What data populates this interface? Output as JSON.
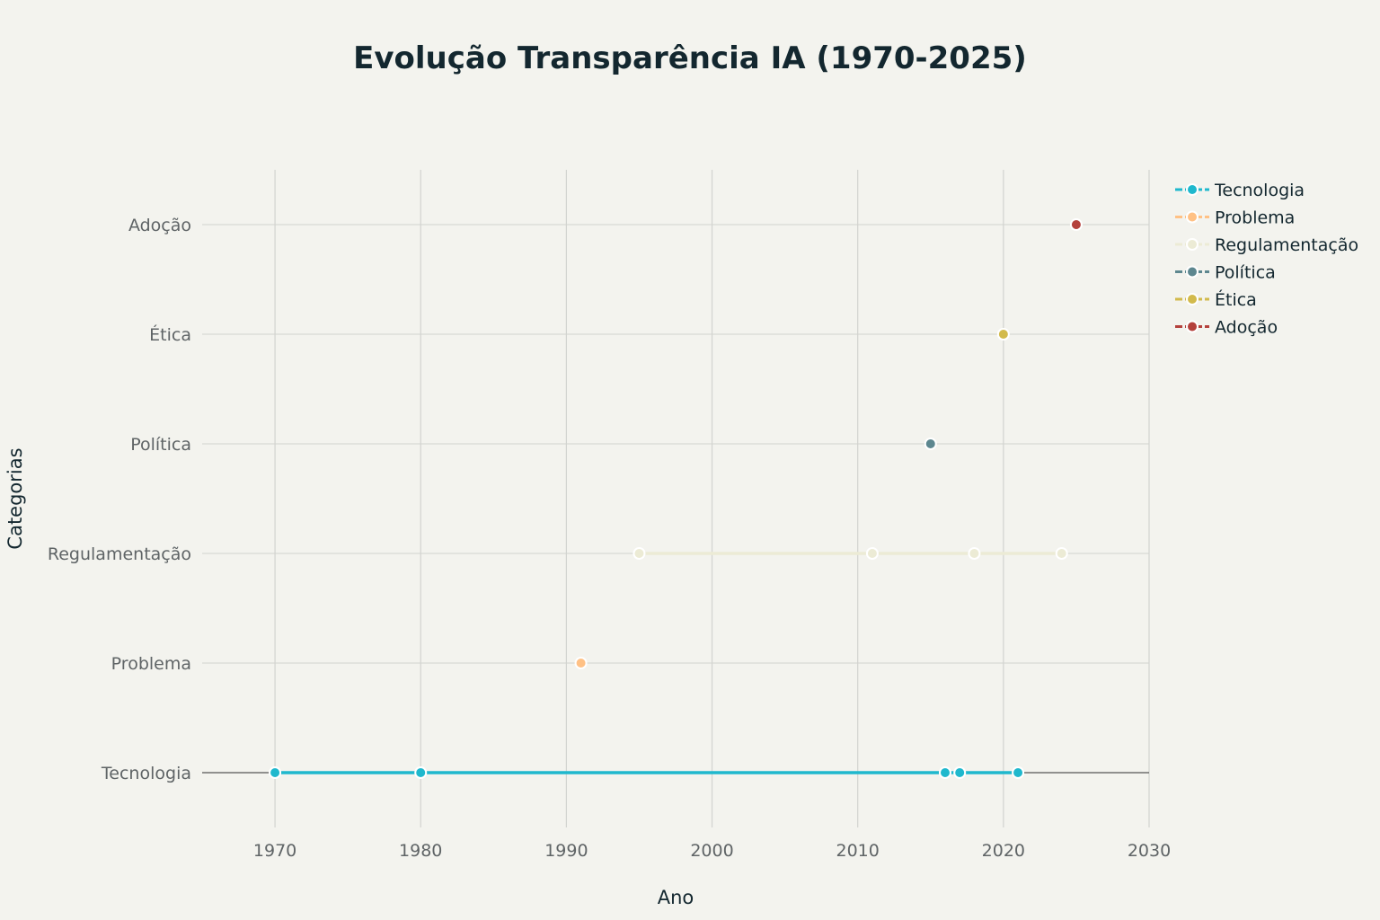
{
  "chart_data": {
    "type": "line",
    "title": "Evolução Transparência IA (1970-2025)",
    "xlabel": "Ano",
    "ylabel": "Categorias",
    "xlim": [
      1965,
      2030
    ],
    "xticks": [
      1970,
      1980,
      1990,
      2000,
      2010,
      2020,
      2030
    ],
    "categories": [
      "Tecnologia",
      "Problema",
      "Regulamentação",
      "Política",
      "Ética",
      "Adoção"
    ],
    "grid": true,
    "legend_position": "top-right",
    "series": [
      {
        "name": "Tecnologia",
        "color": "#1FB8CD",
        "category": "Tecnologia",
        "x": [
          1970,
          1980,
          2016,
          2017,
          2021
        ]
      },
      {
        "name": "Problema",
        "color": "#FFC185",
        "category": "Problema",
        "x": [
          1991
        ]
      },
      {
        "name": "Regulamentação",
        "color": "#ECEBD5",
        "category": "Regulamentação",
        "x": [
          1995,
          2011,
          2018,
          2024
        ]
      },
      {
        "name": "Política",
        "color": "#5D878F",
        "category": "Política",
        "x": [
          2015
        ]
      },
      {
        "name": "Ética",
        "color": "#D2BA4C",
        "category": "Ética",
        "x": [
          2020
        ]
      },
      {
        "name": "Adoção",
        "color": "#B4413C",
        "category": "Adoção",
        "x": [
          2025
        ]
      }
    ]
  }
}
